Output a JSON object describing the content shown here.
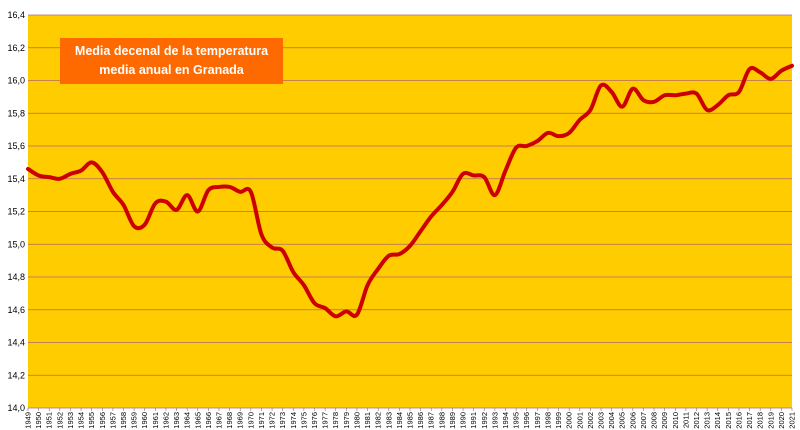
{
  "chart_data": {
    "type": "line",
    "title": [
      "Media decenal de la temperatura",
      "media anual en Granada"
    ],
    "xlabel": "",
    "ylabel": "",
    "ylim": [
      14.0,
      16.4
    ],
    "yticks": [
      "14,0",
      "14,2",
      "14,4",
      "14,6",
      "14,8",
      "15,0",
      "15,2",
      "15,4",
      "15,6",
      "15,8",
      "16,0",
      "16,2",
      "16,4"
    ],
    "grid": "horizontal",
    "colors": {
      "background": "#ffcc00",
      "line": "#cc0000",
      "grid": "#b06a6a",
      "title_box": "#ff6a00"
    },
    "series": [
      {
        "x": [
          "1949",
          "1950",
          "1951",
          "1952",
          "1953",
          "1954",
          "1955",
          "1956",
          "1957",
          "1958",
          "1959",
          "1960",
          "1961",
          "1962",
          "1963",
          "1964",
          "1965",
          "1966",
          "1967",
          "1968",
          "1969",
          "1970",
          "1971",
          "1972",
          "1973",
          "1974",
          "1975",
          "1976",
          "1977",
          "1978",
          "1979",
          "1980",
          "1981",
          "1982",
          "1983",
          "1984",
          "1985",
          "1986",
          "1987",
          "1988",
          "1989",
          "1990",
          "1991",
          "1992",
          "1993",
          "1994",
          "1995",
          "1996",
          "1997",
          "1998",
          "1999",
          "2000",
          "2001",
          "2002",
          "2003",
          "2004",
          "2005",
          "2006",
          "2007",
          "2008",
          "2009",
          "2010",
          "2011",
          "2012",
          "2013",
          "2014",
          "2015",
          "2016",
          "2017",
          "2018",
          "2019",
          "2020",
          "2021"
        ],
        "values": [
          15.46,
          15.42,
          15.41,
          15.4,
          15.43,
          15.45,
          15.5,
          15.44,
          15.32,
          15.24,
          15.11,
          15.12,
          15.25,
          15.26,
          15.21,
          15.3,
          15.2,
          15.33,
          15.35,
          15.35,
          15.32,
          15.32,
          15.06,
          14.98,
          14.96,
          14.83,
          14.75,
          14.64,
          14.61,
          14.56,
          14.59,
          14.57,
          14.75,
          14.85,
          14.93,
          14.94,
          14.99,
          15.08,
          15.17,
          15.24,
          15.32,
          15.43,
          15.42,
          15.41,
          15.3,
          15.45,
          15.59,
          15.6,
          15.63,
          15.68,
          15.66,
          15.68,
          15.76,
          15.82,
          15.97,
          15.93,
          15.84,
          15.95,
          15.88,
          15.87,
          15.91,
          15.91,
          15.92,
          15.92,
          15.82,
          15.85,
          15.91,
          15.93,
          16.07,
          16.05,
          16.01,
          16.06,
          16.09
        ]
      }
    ]
  }
}
